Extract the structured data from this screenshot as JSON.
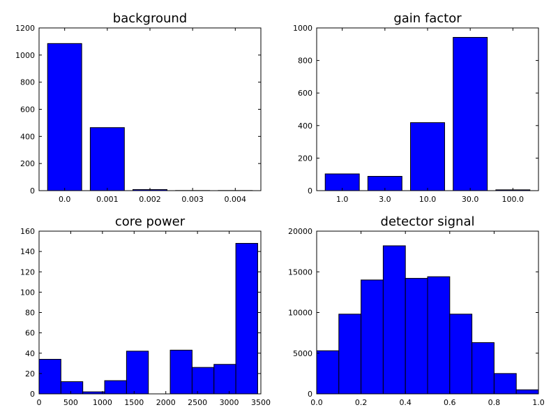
{
  "chart_data": [
    {
      "type": "bar",
      "title": "background",
      "categories": [
        "0.0",
        "0.001",
        "0.002",
        "0.003",
        "0.004"
      ],
      "values": [
        1085,
        465,
        8,
        1,
        1
      ],
      "ylim": [
        0,
        1200
      ],
      "yticks": [
        0,
        200,
        400,
        600,
        800,
        1000,
        1200
      ],
      "bar_color": "#0000ff",
      "grid": false
    },
    {
      "type": "bar",
      "title": "gain factor",
      "categories": [
        "1.0",
        "3.0",
        "10.0",
        "30.0",
        "100.0"
      ],
      "values": [
        103,
        88,
        418,
        942,
        5
      ],
      "ylim": [
        0,
        1000
      ],
      "yticks": [
        0,
        200,
        400,
        600,
        800,
        1000
      ],
      "bar_color": "#0000ff",
      "grid": false
    },
    {
      "type": "histogram",
      "title": "core power",
      "bins": [
        {
          "x0": 0,
          "x1": 345,
          "count": 34
        },
        {
          "x0": 345,
          "x1": 690,
          "count": 12
        },
        {
          "x0": 690,
          "x1": 1035,
          "count": 2
        },
        {
          "x0": 1035,
          "x1": 1380,
          "count": 13
        },
        {
          "x0": 1380,
          "x1": 1725,
          "count": 42
        },
        {
          "x0": 1725,
          "x1": 2070,
          "count": 0
        },
        {
          "x0": 2070,
          "x1": 2415,
          "count": 43
        },
        {
          "x0": 2415,
          "x1": 2760,
          "count": 26
        },
        {
          "x0": 2760,
          "x1": 3105,
          "count": 29
        },
        {
          "x0": 3105,
          "x1": 3450,
          "count": 148
        }
      ],
      "xlim": [
        0,
        3500
      ],
      "xticks": [
        0,
        500,
        1000,
        1500,
        2000,
        2500,
        3000,
        3500
      ],
      "ylim": [
        0,
        160
      ],
      "yticks": [
        0,
        20,
        40,
        60,
        80,
        100,
        120,
        140,
        160
      ],
      "bar_color": "#0000ff",
      "grid": false
    },
    {
      "type": "histogram",
      "title": "detector signal",
      "bins": [
        {
          "x0": 0.0,
          "x1": 0.1,
          "count": 5300
        },
        {
          "x0": 0.1,
          "x1": 0.2,
          "count": 9800
        },
        {
          "x0": 0.2,
          "x1": 0.3,
          "count": 14000
        },
        {
          "x0": 0.3,
          "x1": 0.4,
          "count": 18200
        },
        {
          "x0": 0.4,
          "x1": 0.5,
          "count": 14200
        },
        {
          "x0": 0.5,
          "x1": 0.6,
          "count": 14400
        },
        {
          "x0": 0.6,
          "x1": 0.7,
          "count": 9800
        },
        {
          "x0": 0.7,
          "x1": 0.8,
          "count": 6300
        },
        {
          "x0": 0.8,
          "x1": 0.9,
          "count": 2500
        },
        {
          "x0": 0.9,
          "x1": 1.0,
          "count": 500
        }
      ],
      "xlim": [
        0.0,
        1.0
      ],
      "xticks": [
        "0.0",
        "0.2",
        "0.4",
        "0.6",
        "0.8",
        "1.0"
      ],
      "ylim": [
        0,
        20000
      ],
      "yticks": [
        0,
        5000,
        10000,
        15000,
        20000
      ],
      "bar_color": "#0000ff",
      "grid": false
    }
  ]
}
